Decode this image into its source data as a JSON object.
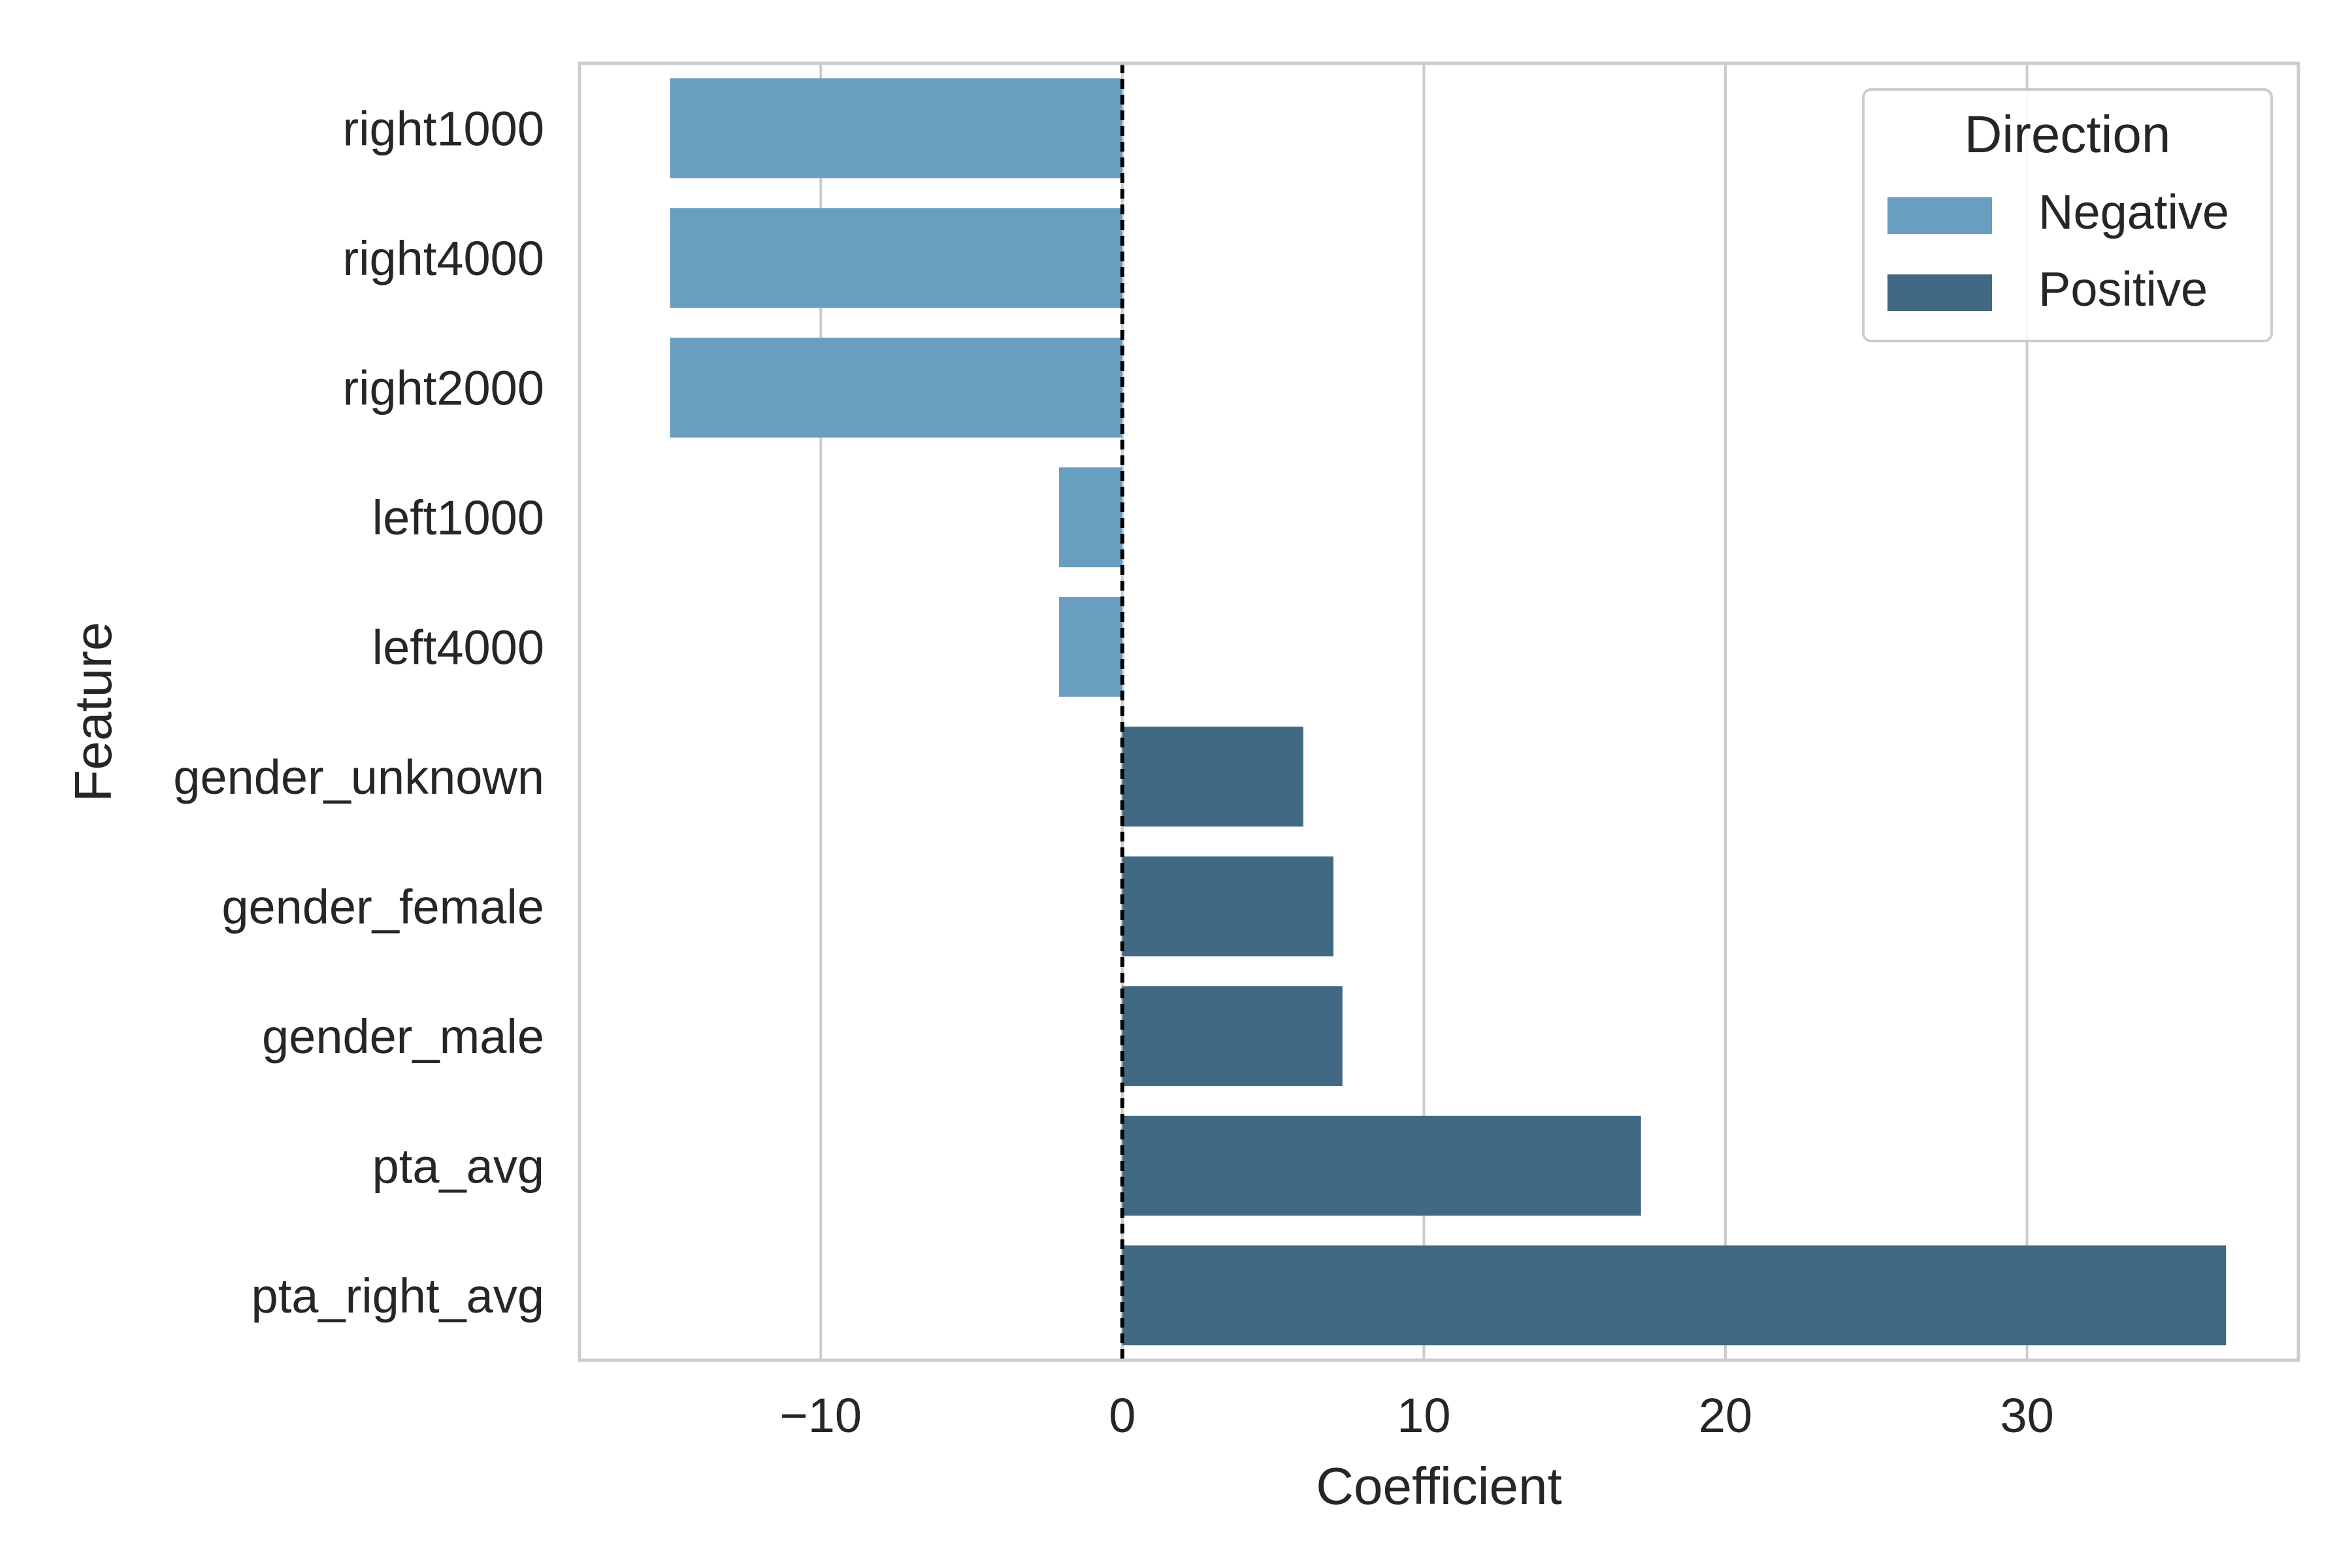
{
  "chart_data": {
    "type": "bar",
    "orientation": "horizontal",
    "xlabel": "Coefficient",
    "ylabel": "Feature",
    "xlim": [
      -18,
      39
    ],
    "xticks": [
      -10,
      0,
      10,
      20,
      30
    ],
    "xtick_labels": [
      "−10",
      "0",
      "10",
      "20",
      "30"
    ],
    "grid": "vertical",
    "reference_line": {
      "x": 0,
      "style": "dashed",
      "color": "#000000"
    },
    "categories": [
      "right1000",
      "right4000",
      "right2000",
      "left1000",
      "left4000",
      "gender_unknown",
      "gender_female",
      "gender_male",
      "pta_avg",
      "pta_right_avg"
    ],
    "values": [
      -15.0,
      -15.0,
      -15.0,
      -2.1,
      -2.1,
      6.0,
      7.0,
      7.3,
      17.2,
      36.6
    ],
    "direction": [
      "Negative",
      "Negative",
      "Negative",
      "Negative",
      "Negative",
      "Positive",
      "Positive",
      "Positive",
      "Positive",
      "Positive"
    ],
    "legend": {
      "title": "Direction",
      "position": "top-right",
      "entries": [
        {
          "label": "Negative",
          "color": "#6a9ec1"
        },
        {
          "label": "Positive",
          "color": "#426984"
        }
      ]
    }
  }
}
